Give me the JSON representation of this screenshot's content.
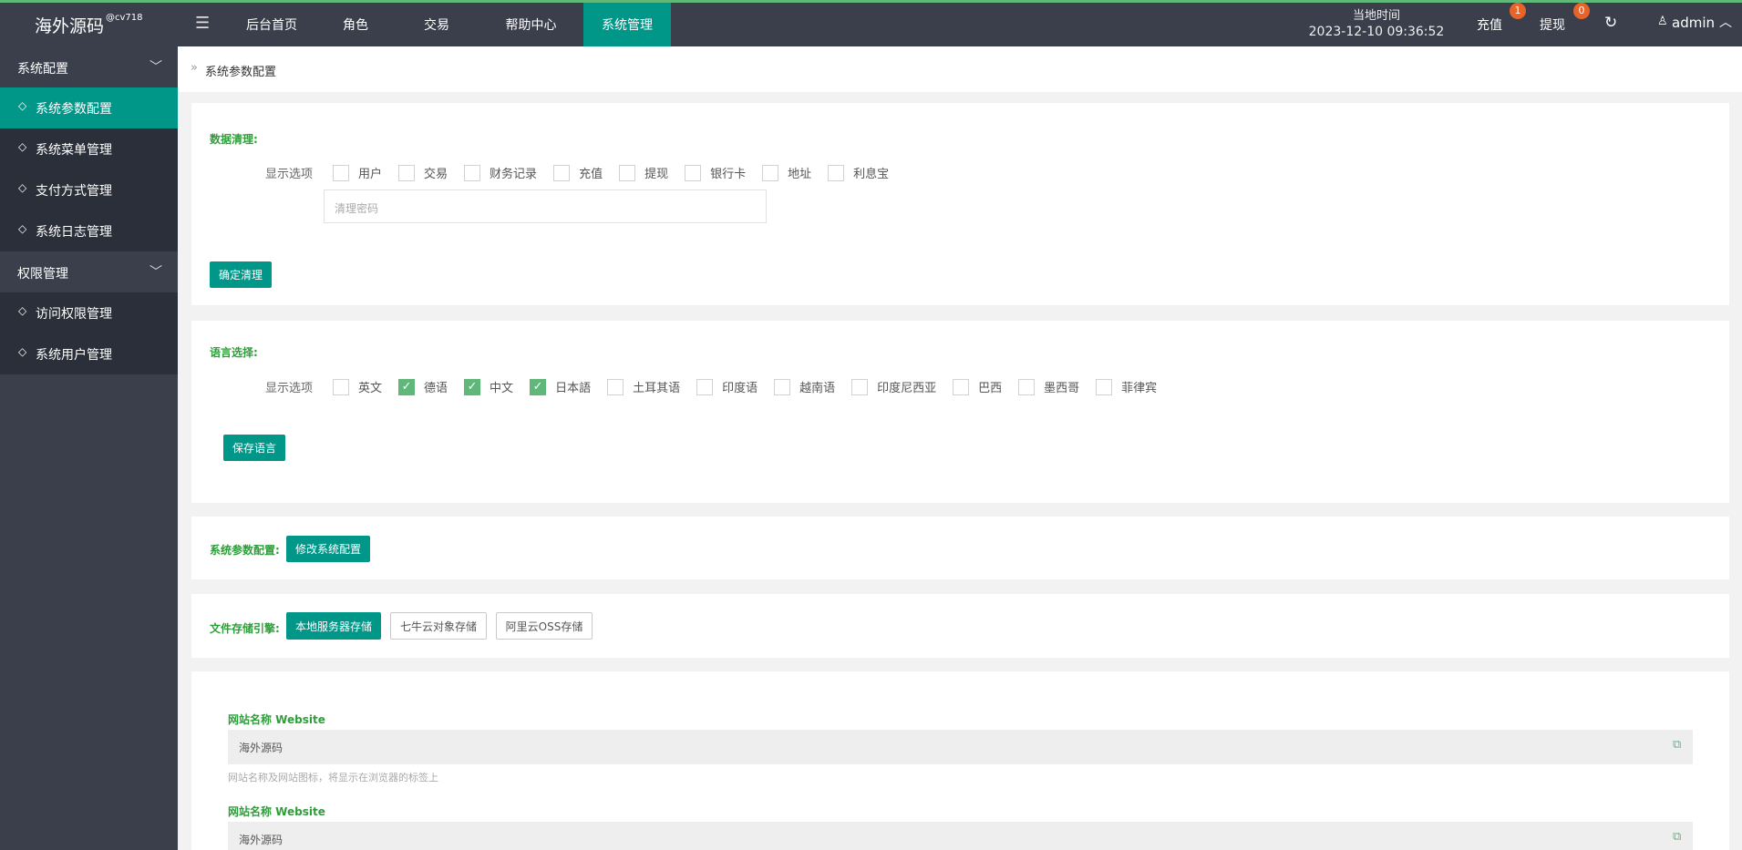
{
  "header": {
    "logo": "海外源码",
    "logo_tag": "@cv718",
    "nav": [
      "后台首页",
      "角色",
      "交易",
      "帮助中心",
      "系统管理"
    ],
    "active_nav": 4,
    "time_label": "当地时间",
    "time": "2023-12-10 09:36:52",
    "recharge": "充值",
    "recharge_badge": "1",
    "withdraw": "提现",
    "withdraw_badge": "0",
    "user": "admin"
  },
  "sidebar": {
    "groups": [
      {
        "title": "系统配置",
        "items": [
          "系统参数配置",
          "系统菜单管理",
          "支付方式管理",
          "系统日志管理"
        ]
      },
      {
        "title": "权限管理",
        "items": [
          "访问权限管理",
          "系统用户管理"
        ]
      }
    ],
    "active_item": [
      0,
      0
    ]
  },
  "breadcrumb": "系统参数配置",
  "data_clear": {
    "title": "数据清理:",
    "label": "显示选项",
    "options": [
      "用户",
      "交易",
      "财务记录",
      "充值",
      "提现",
      "银行卡",
      "地址",
      "利息宝"
    ],
    "password_placeholder": "清理密码",
    "button": "确定清理"
  },
  "language": {
    "title": "语言选择:",
    "label": "显示选项",
    "options": [
      {
        "name": "英文",
        "checked": false
      },
      {
        "name": "德语",
        "checked": true
      },
      {
        "name": "中文",
        "checked": true
      },
      {
        "name": "日本語",
        "checked": true
      },
      {
        "name": "土耳其语",
        "checked": false
      },
      {
        "name": "印度语",
        "checked": false
      },
      {
        "name": "越南语",
        "checked": false
      },
      {
        "name": "印度尼西亚",
        "checked": false
      },
      {
        "name": "巴西",
        "checked": false
      },
      {
        "name": "墨西哥",
        "checked": false
      },
      {
        "name": "菲律宾",
        "checked": false
      }
    ],
    "button": "保存语言"
  },
  "system_config": {
    "title": "系统参数配置:",
    "button": "修改系统配置"
  },
  "storage": {
    "title": "文件存储引擎:",
    "options": [
      "本地服务器存储",
      "七牛云对象存储",
      "阿里云OSS存储"
    ],
    "active": 0
  },
  "fields": [
    {
      "label": "网站名称 Website",
      "value": "海外源码",
      "hint": "网站名称及网站图标，将显示在浏览器的标签上"
    },
    {
      "label": "网站名称 Website",
      "value": "海外源码"
    }
  ]
}
